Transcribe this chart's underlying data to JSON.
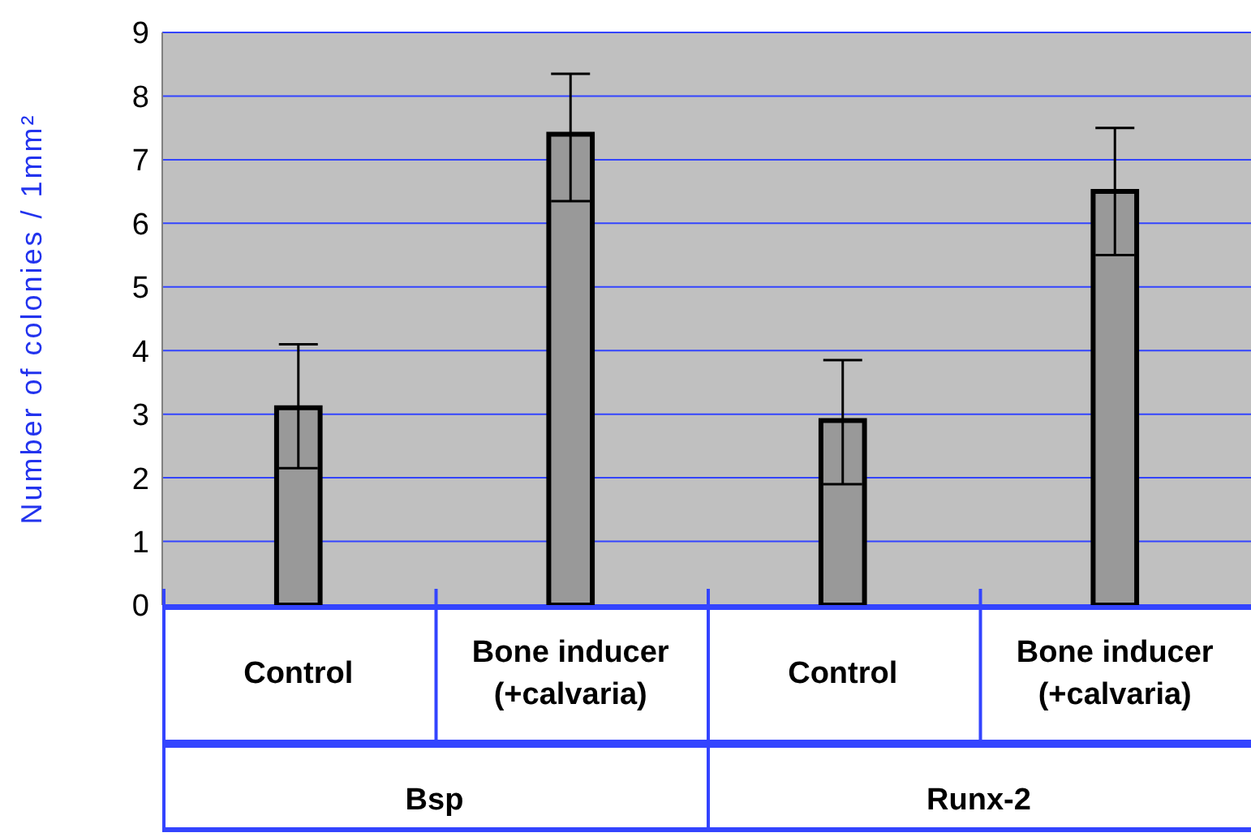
{
  "chart_data": {
    "type": "bar",
    "ylabel": "Number of colonies / 1mm²",
    "categories": [
      "Control",
      "Bone inducer (+calvaria)",
      "Control",
      "Bone inducer (+calvaria)"
    ],
    "values": [
      3.1,
      7.4,
      2.9,
      6.5
    ],
    "errors": [
      [
        2.15,
        4.1
      ],
      [
        6.35,
        8.35
      ],
      [
        1.9,
        3.85
      ],
      [
        5.5,
        7.5
      ]
    ],
    "color": "#999999",
    "ylim": [
      0,
      9
    ],
    "yticks": [
      0,
      1,
      2,
      3,
      4,
      5,
      6,
      7,
      8,
      9
    ],
    "grid": "y",
    "annotations": [
      "Bsp",
      "Runx-2"
    ]
  }
}
